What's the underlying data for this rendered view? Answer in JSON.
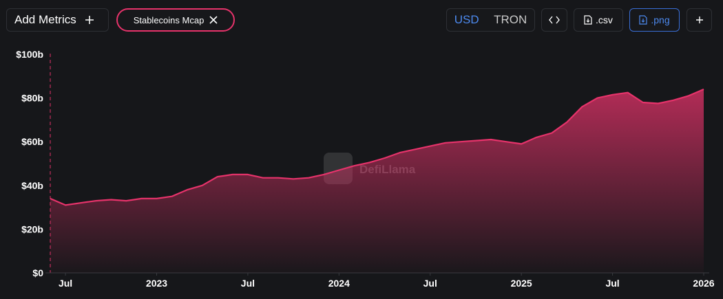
{
  "toolbar": {
    "add_metrics": "Add Metrics",
    "metric": "Stablecoins Mcap",
    "currency": [
      "USD",
      "TRON"
    ],
    "csv": ".csv",
    "png": ".png"
  },
  "chart_data": {
    "type": "area",
    "series": [
      {
        "name": "Stablecoins Mcap",
        "color": "#e7336b",
        "values": [
          34,
          31,
          32,
          33,
          33.5,
          33,
          34,
          34,
          35,
          38,
          40,
          44,
          45,
          45,
          43.5,
          43.5,
          43,
          43.5,
          45,
          47,
          49,
          50.5,
          52.5,
          55,
          56.5,
          58,
          59.5,
          60,
          60.5,
          61,
          60,
          59,
          62,
          64,
          69,
          76,
          80,
          81.5,
          82.5,
          78,
          77.5,
          79,
          81,
          84
        ]
      }
    ],
    "x": [
      "2022-06",
      "2022-07",
      "2022-08",
      "2022-09",
      "2022-10",
      "2022-11",
      "2022-12",
      "2023-01",
      "2023-02",
      "2023-03",
      "2023-04",
      "2023-05",
      "2023-06",
      "2023-07",
      "2023-08",
      "2023-09",
      "2023-10",
      "2023-11",
      "2023-12",
      "2024-01",
      "2024-02",
      "2024-03",
      "2024-04",
      "2024-05",
      "2024-06",
      "2024-07",
      "2024-08",
      "2024-09",
      "2024-10",
      "2024-11",
      "2024-12",
      "2025-01",
      "2025-02",
      "2025-03",
      "2025-04",
      "2025-05",
      "2025-06",
      "2025-07",
      "2025-08",
      "2025-09",
      "2025-10",
      "2025-11",
      "2025-12",
      "2026-01"
    ],
    "xlim": [
      "2022-06",
      "2026-01"
    ],
    "xticks": [
      {
        "value": "2022-07",
        "label": "Jul"
      },
      {
        "value": "2023-01",
        "label": "2023"
      },
      {
        "value": "2023-07",
        "label": "Jul"
      },
      {
        "value": "2024-01",
        "label": "2024"
      },
      {
        "value": "2024-07",
        "label": "Jul"
      },
      {
        "value": "2025-01",
        "label": "2025"
      },
      {
        "value": "2025-07",
        "label": "Jul"
      },
      {
        "value": "2026-01",
        "label": "2026"
      }
    ],
    "ylim": [
      0,
      100
    ],
    "yticks": [
      {
        "value": 0,
        "label": "$0"
      },
      {
        "value": 20,
        "label": "$20b"
      },
      {
        "value": 40,
        "label": "$40b"
      },
      {
        "value": 60,
        "label": "$60b"
      },
      {
        "value": 80,
        "label": "$80b"
      },
      {
        "value": 100,
        "label": "$100b"
      }
    ],
    "watermark": "DefiLlama"
  }
}
